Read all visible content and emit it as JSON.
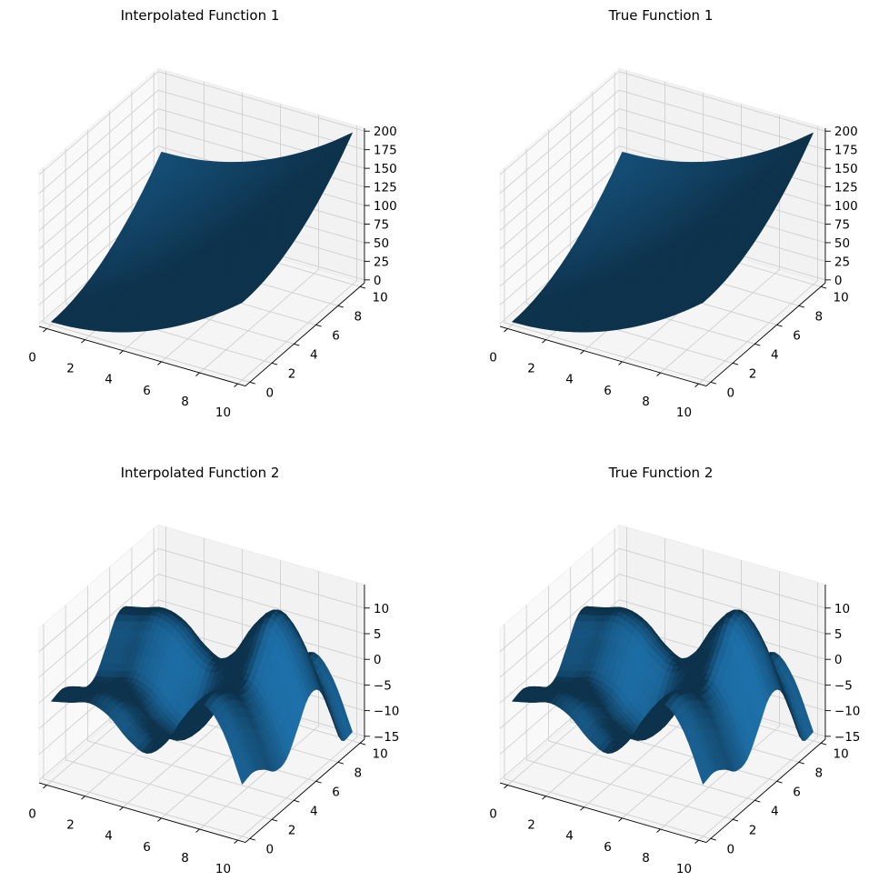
{
  "chart_data": [
    {
      "type": "surface",
      "title": "Interpolated Function 1",
      "view": {
        "elev": 30,
        "azim": -60
      },
      "grid": true,
      "color": "#1f77b4",
      "xlim": [
        0,
        10
      ],
      "ylim": [
        0,
        10
      ],
      "zlim": [
        0,
        200
      ],
      "x_ticks": [
        0,
        2,
        4,
        6,
        8,
        10
      ],
      "x_tick_labels": [
        "0",
        "2",
        "4",
        "6",
        "8",
        "10"
      ],
      "y_ticks": [
        0,
        2,
        4,
        6,
        8,
        10
      ],
      "y_tick_labels": [
        "0",
        "2",
        "4",
        "6",
        "8",
        "10"
      ],
      "z_ticks": [
        0,
        25,
        50,
        75,
        100,
        125,
        150,
        175,
        200
      ],
      "z_tick_labels": [
        "0",
        "25",
        "50",
        "75",
        "100",
        "125",
        "150",
        "175",
        "200"
      ],
      "grid_x": [
        0,
        1,
        2,
        3,
        4,
        5,
        6,
        7,
        8,
        9,
        10
      ],
      "grid_y": [
        0,
        1,
        2,
        3,
        4,
        5,
        6,
        7,
        8,
        9,
        10
      ],
      "z": [
        [
          0,
          1,
          4,
          9,
          16,
          25,
          36,
          49,
          64,
          81,
          100
        ],
        [
          1,
          2,
          5,
          10,
          17,
          26,
          37,
          50,
          65,
          82,
          101
        ],
        [
          4,
          5,
          8,
          13,
          20,
          29,
          40,
          53,
          68,
          85,
          104
        ],
        [
          9,
          10,
          13,
          18,
          25,
          34,
          45,
          58,
          73,
          90,
          109
        ],
        [
          16,
          17,
          20,
          25,
          32,
          41,
          52,
          65,
          80,
          97,
          116
        ],
        [
          25,
          26,
          29,
          34,
          41,
          50,
          61,
          74,
          89,
          106,
          125
        ],
        [
          36,
          37,
          40,
          45,
          52,
          61,
          72,
          85,
          100,
          117,
          136
        ],
        [
          49,
          50,
          53,
          58,
          65,
          74,
          85,
          98,
          113,
          130,
          149
        ],
        [
          64,
          65,
          68,
          73,
          80,
          89,
          100,
          113,
          128,
          145,
          164
        ],
        [
          81,
          82,
          85,
          90,
          97,
          106,
          117,
          130,
          145,
          162,
          181
        ],
        [
          100,
          101,
          104,
          109,
          116,
          125,
          136,
          149,
          164,
          181,
          200
        ]
      ]
    },
    {
      "type": "surface",
      "title": "True Function 1",
      "view": {
        "elev": 30,
        "azim": -60
      },
      "grid": true,
      "color": "#1f77b4",
      "xlim": [
        0,
        10
      ],
      "ylim": [
        0,
        10
      ],
      "zlim": [
        0,
        200
      ],
      "x_ticks": [
        0,
        2,
        4,
        6,
        8,
        10
      ],
      "x_tick_labels": [
        "0",
        "2",
        "4",
        "6",
        "8",
        "10"
      ],
      "y_ticks": [
        0,
        2,
        4,
        6,
        8,
        10
      ],
      "y_tick_labels": [
        "0",
        "2",
        "4",
        "6",
        "8",
        "10"
      ],
      "z_ticks": [
        0,
        25,
        50,
        75,
        100,
        125,
        150,
        175,
        200
      ],
      "z_tick_labels": [
        "0",
        "25",
        "50",
        "75",
        "100",
        "125",
        "150",
        "175",
        "200"
      ],
      "grid_x": [
        0,
        1,
        2,
        3,
        4,
        5,
        6,
        7,
        8,
        9,
        10
      ],
      "grid_y": [
        0,
        1,
        2,
        3,
        4,
        5,
        6,
        7,
        8,
        9,
        10
      ],
      "z": [
        [
          0,
          1,
          4,
          9,
          16,
          25,
          36,
          49,
          64,
          81,
          100
        ],
        [
          1,
          2,
          5,
          10,
          17,
          26,
          37,
          50,
          65,
          82,
          101
        ],
        [
          4,
          5,
          8,
          13,
          20,
          29,
          40,
          53,
          68,
          85,
          104
        ],
        [
          9,
          10,
          13,
          18,
          25,
          34,
          45,
          58,
          73,
          90,
          109
        ],
        [
          16,
          17,
          20,
          25,
          32,
          41,
          52,
          65,
          80,
          97,
          116
        ],
        [
          25,
          26,
          29,
          34,
          41,
          50,
          61,
          74,
          89,
          106,
          125
        ],
        [
          36,
          37,
          40,
          45,
          52,
          61,
          72,
          85,
          100,
          117,
          136
        ],
        [
          49,
          50,
          53,
          58,
          65,
          74,
          85,
          98,
          113,
          130,
          149
        ],
        [
          64,
          65,
          68,
          73,
          80,
          89,
          100,
          113,
          128,
          145,
          164
        ],
        [
          81,
          82,
          85,
          90,
          97,
          106,
          117,
          130,
          145,
          162,
          181
        ],
        [
          100,
          101,
          104,
          109,
          116,
          125,
          136,
          149,
          164,
          181,
          200
        ]
      ]
    },
    {
      "type": "surface",
      "title": "Interpolated Function 2",
      "view": {
        "elev": 30,
        "azim": -60
      },
      "grid": true,
      "color": "#1f77b4",
      "xlim": [
        0,
        10
      ],
      "ylim": [
        0,
        10
      ],
      "zlim": [
        -15,
        14
      ],
      "x_ticks": [
        0,
        2,
        4,
        6,
        8,
        10
      ],
      "x_tick_labels": [
        "0",
        "2",
        "4",
        "6",
        "8",
        "10"
      ],
      "y_ticks": [
        0,
        2,
        4,
        6,
        8,
        10
      ],
      "y_tick_labels": [
        "0",
        "2",
        "4",
        "6",
        "8",
        "10"
      ],
      "z_ticks": [
        -15,
        -10,
        -5,
        0,
        5,
        10
      ],
      "z_tick_labels": [
        "−15",
        "−10",
        "−5",
        "0",
        "5",
        "10"
      ],
      "grid_x": [
        0,
        1,
        2,
        3,
        4,
        5,
        6,
        7,
        8,
        9,
        10
      ],
      "grid_y": [
        0,
        1,
        2,
        3,
        4,
        5,
        6,
        7,
        8,
        9,
        10
      ],
      "z": [
        [
          0,
          0.54,
          -0.83,
          -2.97,
          -2.61,
          1.42,
          5.76,
          5.28,
          -1.16,
          -8.2,
          -8.39
        ],
        [
          0.84,
          1.38,
          0.01,
          -2.13,
          -1.77,
          2.26,
          6.6,
          6.12,
          -0.32,
          -7.36,
          -7.55
        ],
        [
          1.82,
          2.36,
          0.99,
          -1.15,
          -0.79,
          3.24,
          7.58,
          7.1,
          0.66,
          -6.38,
          -6.57
        ],
        [
          0.42,
          0.96,
          -0.41,
          -2.55,
          -2.19,
          1.84,
          6.18,
          5.7,
          -0.74,
          -7.78,
          -7.97
        ],
        [
          -3.03,
          -2.49,
          -3.86,
          -6.0,
          -5.64,
          -1.61,
          2.73,
          2.25,
          -4.19,
          -11.23,
          -11.42
        ],
        [
          -4.79,
          -4.25,
          -5.62,
          -7.76,
          -7.4,
          -3.37,
          0.97,
          0.49,
          -5.95,
          -12.99,
          -13.18
        ],
        [
          -1.68,
          -1.14,
          -2.51,
          -4.65,
          -4.29,
          -0.26,
          4.08,
          3.6,
          -2.84,
          -9.88,
          -10.07
        ],
        [
          4.6,
          5.14,
          3.77,
          1.63,
          1.99,
          6.02,
          10.36,
          9.88,
          3.44,
          -3.6,
          -3.79
        ],
        [
          7.91,
          8.45,
          7.08,
          4.94,
          5.3,
          9.33,
          13.67,
          13.19,
          6.75,
          -0.29,
          -0.48
        ],
        [
          3.71,
          4.25,
          2.88,
          0.74,
          1.1,
          5.13,
          9.47,
          8.99,
          2.55,
          -4.49,
          -4.68
        ],
        [
          -5.44,
          -4.9,
          -6.27,
          -8.41,
          -8.05,
          -4.02,
          0.32,
          -0.16,
          -6.6,
          -13.64,
          -13.83
        ]
      ]
    },
    {
      "type": "surface",
      "title": "True Function 2",
      "view": {
        "elev": 30,
        "azim": -60
      },
      "grid": true,
      "color": "#1f77b4",
      "xlim": [
        0,
        10
      ],
      "ylim": [
        0,
        10
      ],
      "zlim": [
        -15,
        14
      ],
      "x_ticks": [
        0,
        2,
        4,
        6,
        8,
        10
      ],
      "x_tick_labels": [
        "0",
        "2",
        "4",
        "6",
        "8",
        "10"
      ],
      "y_ticks": [
        0,
        2,
        4,
        6,
        8,
        10
      ],
      "y_tick_labels": [
        "0",
        "2",
        "4",
        "6",
        "8",
        "10"
      ],
      "z_ticks": [
        -15,
        -10,
        -5,
        0,
        5,
        10
      ],
      "z_tick_labels": [
        "−15",
        "−10",
        "−5",
        "0",
        "5",
        "10"
      ],
      "grid_x": [
        0,
        1,
        2,
        3,
        4,
        5,
        6,
        7,
        8,
        9,
        10
      ],
      "grid_y": [
        0,
        1,
        2,
        3,
        4,
        5,
        6,
        7,
        8,
        9,
        10
      ],
      "z": [
        [
          0,
          0.54,
          -0.83,
          -2.97,
          -2.61,
          1.42,
          5.76,
          5.28,
          -1.16,
          -8.2,
          -8.39
        ],
        [
          0.84,
          1.38,
          0.01,
          -2.13,
          -1.77,
          2.26,
          6.6,
          6.12,
          -0.32,
          -7.36,
          -7.55
        ],
        [
          1.82,
          2.36,
          0.99,
          -1.15,
          -0.79,
          3.24,
          7.58,
          7.1,
          0.66,
          -6.38,
          -6.57
        ],
        [
          0.42,
          0.96,
          -0.41,
          -2.55,
          -2.19,
          1.84,
          6.18,
          5.7,
          -0.74,
          -7.78,
          -7.97
        ],
        [
          -3.03,
          -2.49,
          -3.86,
          -6.0,
          -5.64,
          -1.61,
          2.73,
          2.25,
          -4.19,
          -11.23,
          -11.42
        ],
        [
          -4.79,
          -4.25,
          -5.62,
          -7.76,
          -7.4,
          -3.37,
          0.97,
          0.49,
          -5.95,
          -12.99,
          -13.18
        ],
        [
          -1.68,
          -1.14,
          -2.51,
          -4.65,
          -4.29,
          -0.26,
          4.08,
          3.6,
          -2.84,
          -9.88,
          -10.07
        ],
        [
          4.6,
          5.14,
          3.77,
          1.63,
          1.99,
          6.02,
          10.36,
          9.88,
          3.44,
          -3.6,
          -3.79
        ],
        [
          7.91,
          8.45,
          7.08,
          4.94,
          5.3,
          9.33,
          13.67,
          13.19,
          6.75,
          -0.29,
          -0.48
        ],
        [
          3.71,
          4.25,
          2.88,
          0.74,
          1.1,
          5.13,
          9.47,
          8.99,
          2.55,
          -4.49,
          -4.68
        ],
        [
          -5.44,
          -4.9,
          -6.27,
          -8.41,
          -8.05,
          -4.02,
          0.32,
          -0.16,
          -6.6,
          -13.64,
          -13.83
        ]
      ]
    }
  ]
}
